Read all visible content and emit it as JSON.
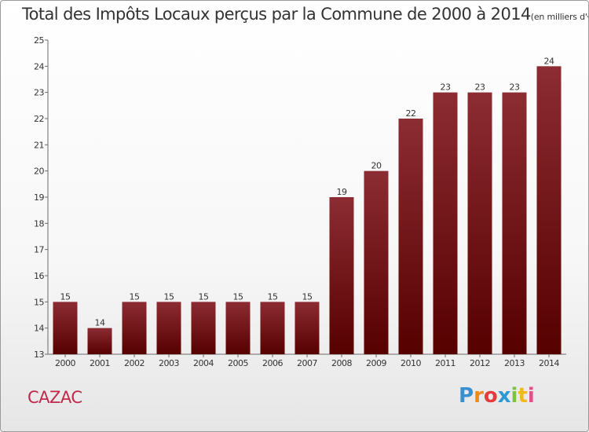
{
  "chart_data": {
    "type": "bar",
    "title": "Total des Impôts Locaux perçus par la Commune de 2000 à 2014",
    "unit_label": "(en milliers d'€)",
    "categories": [
      "2000",
      "2001",
      "2002",
      "2003",
      "2004",
      "2005",
      "2006",
      "2007",
      "2008",
      "2009",
      "2010",
      "2011",
      "2012",
      "2013",
      "2014"
    ],
    "values": [
      15,
      14,
      15,
      15,
      15,
      15,
      15,
      15,
      19,
      20,
      22,
      23,
      23,
      23,
      24
    ],
    "ylim": [
      13,
      25
    ],
    "yticks": [
      13,
      14,
      15,
      16,
      17,
      18,
      19,
      20,
      21,
      22,
      23,
      24,
      25
    ],
    "grid": false,
    "bar_color": "#7a1a22",
    "xlabel": "",
    "ylabel": ""
  },
  "commune": "CAZAC",
  "logo": {
    "letters": [
      "P",
      "r",
      "o",
      "x",
      "i",
      "t",
      "i"
    ],
    "colors": [
      "#3a8fd0",
      "#f08a1c",
      "#e43a3a",
      "#2a9ad6",
      "#7cc243",
      "#f2b91b",
      "#e0508a"
    ]
  }
}
